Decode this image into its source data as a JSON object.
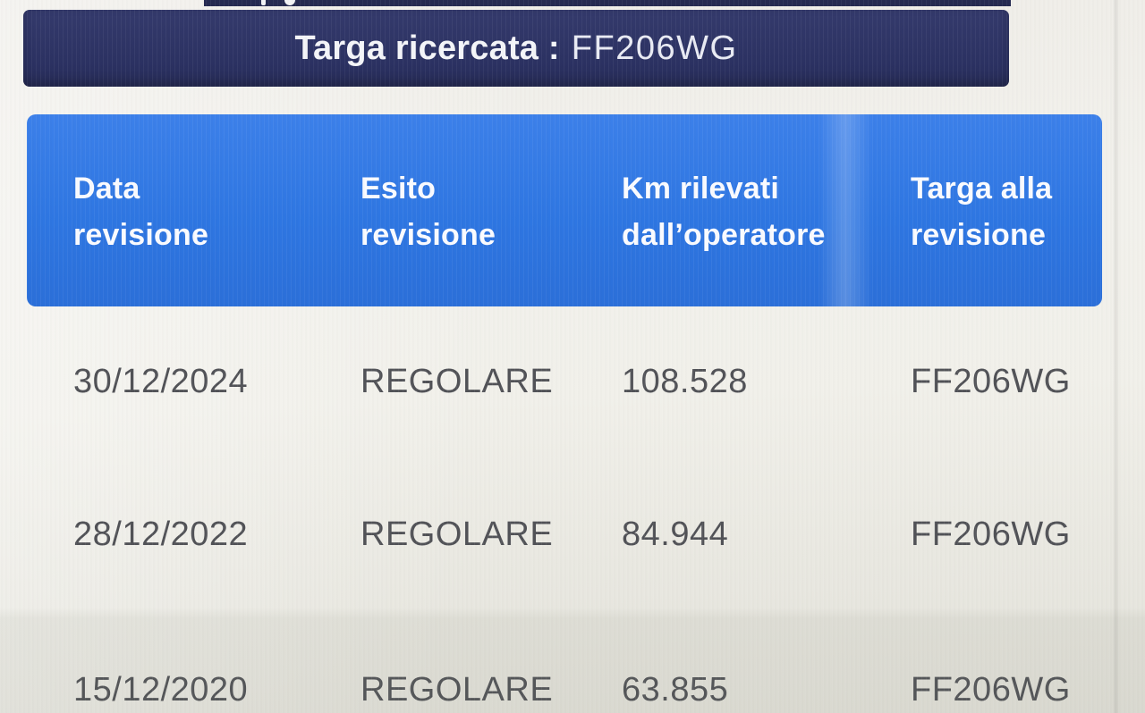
{
  "banner": {
    "label": "Targa ricercata :",
    "value": "FF206WG"
  },
  "results_table": {
    "columns": [
      "Data revisione",
      "Esito revisione",
      "Km rilevati dall’operatore",
      "Targa alla revisione"
    ],
    "rows": [
      [
        "30/12/2024",
        "REGOLARE",
        "108.528",
        "FF206WG"
      ],
      [
        "28/12/2022",
        "REGOLARE",
        "84.944",
        "FF206WG"
      ],
      [
        "15/12/2020",
        "REGOLARE",
        "63.855",
        "FF206WG"
      ]
    ]
  },
  "colors": {
    "banner_navy": "#343a6c",
    "header_blue": "#2e76e2",
    "header_text": "#fafbff",
    "body_text": "#515257"
  }
}
